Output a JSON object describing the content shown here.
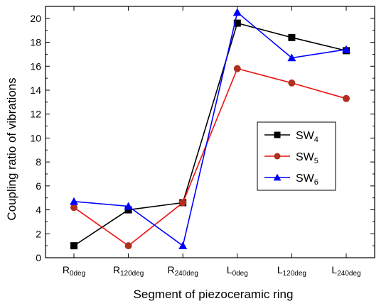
{
  "chart_data": {
    "type": "line",
    "xlabel": "Segment of piezoceramic ring",
    "ylabel": "Coupling ratio of vibrations",
    "ylim": [
      0,
      21
    ],
    "yticks": [
      0,
      2,
      4,
      6,
      8,
      10,
      12,
      14,
      16,
      18,
      20
    ],
    "grid": false,
    "legend_position": "right-middle",
    "categories": [
      {
        "main": "R",
        "sub": "0deg"
      },
      {
        "main": "R",
        "sub": "120deg"
      },
      {
        "main": "R",
        "sub": "240deg"
      },
      {
        "main": "L",
        "sub": "0deg"
      },
      {
        "main": "L",
        "sub": "120deg"
      },
      {
        "main": "L",
        "sub": "240deg"
      }
    ],
    "series": [
      {
        "name_main": "SW",
        "name_sub": "4",
        "color": "#000000",
        "marker": "square",
        "values": [
          1.0,
          4.0,
          4.6,
          19.6,
          18.4,
          17.3
        ]
      },
      {
        "name_main": "SW",
        "name_sub": "5",
        "color": "#ee1111",
        "marker": "circle",
        "marker_color": "#b03020",
        "values": [
          4.2,
          1.0,
          4.6,
          15.8,
          14.6,
          13.3
        ]
      },
      {
        "name_main": "SW",
        "name_sub": "6",
        "color": "#0000ff",
        "marker": "triangle",
        "values": [
          4.7,
          4.3,
          1.0,
          20.5,
          16.7,
          17.4
        ]
      }
    ]
  }
}
